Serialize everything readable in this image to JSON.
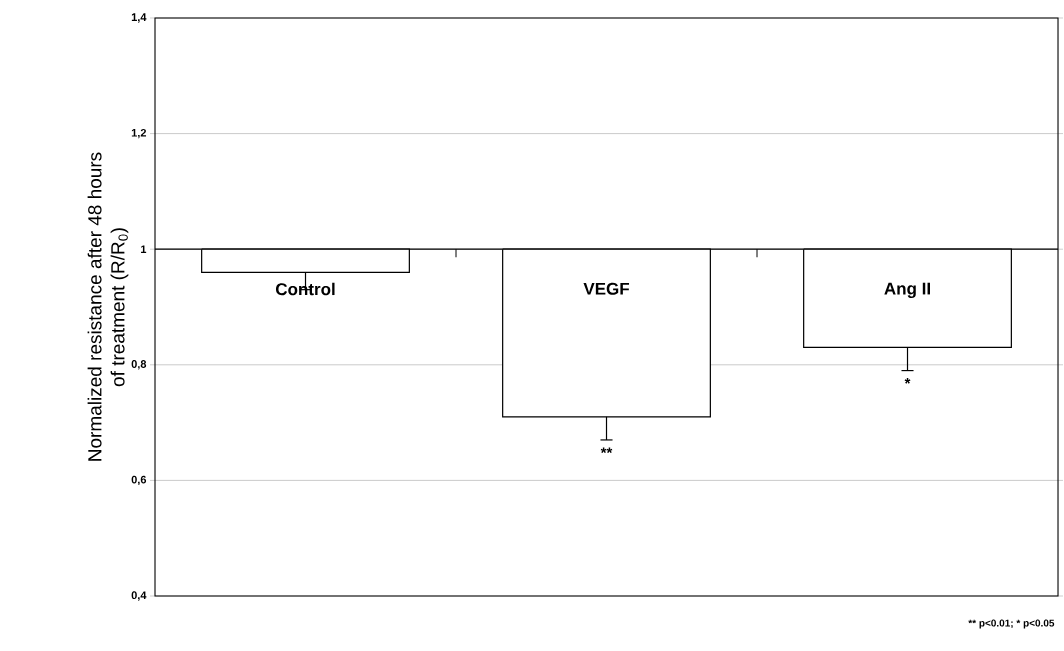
{
  "chart_data": {
    "type": "bar",
    "ylabel": "Normalized resistance after 48 hours of treatment (R/R$_{0}$)",
    "categories": [
      "Control",
      "VEGF",
      "Ang II"
    ],
    "base": [
      1,
      1,
      1
    ],
    "values": [
      -0.04,
      -0.29,
      -0.17
    ],
    "errors": [
      [
        0.93,
        0.96
      ],
      [
        0.67,
        0.71
      ],
      [
        0.79,
        0.83
      ]
    ],
    "color": "#ffffff",
    "ylim": [
      0.4,
      1.4
    ],
    "yticks": [
      {
        "value": 0.4,
        "label": "0,4"
      },
      {
        "value": 0.6,
        "label": "0,6"
      },
      {
        "value": 0.8,
        "label": "0,8"
      },
      {
        "value": 1,
        "label": "1"
      },
      {
        "value": 1.2,
        "label": "1,2"
      },
      {
        "value": 1.4,
        "label": "1,4"
      }
    ],
    "grid": "y",
    "annotations": [
      {
        "text": "**",
        "x": "VEGF",
        "y": 0.67
      },
      {
        "text": "*",
        "x": "Ang II",
        "y": 0.79
      },
      "** p<0.01; * p<0.05"
    ]
  }
}
